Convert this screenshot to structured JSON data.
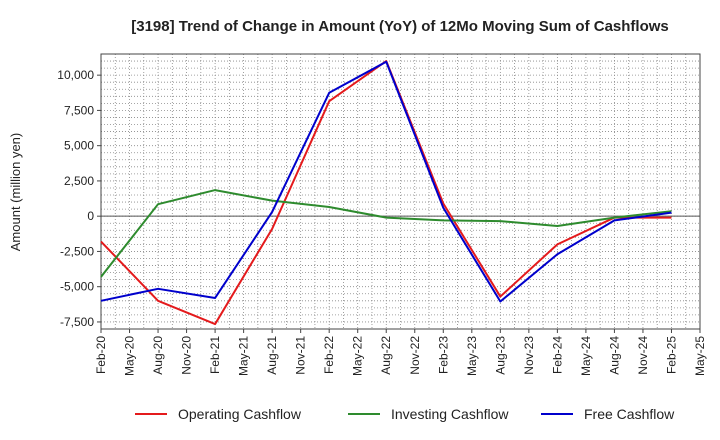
{
  "chart_data": {
    "type": "line",
    "title": "[3198]  Trend of Change in Amount (YoY) of 12Mo Moving Sum of Cashflows",
    "xlabel": "",
    "ylabel": "Amount (million yen)",
    "ylim": [
      -8000,
      11500
    ],
    "yticks": [
      -7500,
      -5000,
      -2500,
      0,
      2500,
      5000,
      7500,
      10000
    ],
    "ytick_labels": [
      "-7,500",
      "-5,000",
      "-2,500",
      "0",
      "2,500",
      "5,000",
      "7,500",
      "10,000"
    ],
    "x_tick_labels": [
      "Feb-20",
      "May-20",
      "Aug-20",
      "Nov-20",
      "Feb-21",
      "May-21",
      "Aug-21",
      "Nov-21",
      "Feb-22",
      "May-22",
      "Aug-22",
      "Nov-22",
      "Feb-23",
      "May-23",
      "Aug-23",
      "Nov-23",
      "Feb-24",
      "May-24",
      "Aug-24",
      "Nov-24",
      "Feb-25",
      "May-25"
    ],
    "x": [
      "Feb-20",
      "Aug-20",
      "Feb-21",
      "Aug-21",
      "Feb-22",
      "Aug-22",
      "Feb-23",
      "Aug-23",
      "Feb-24",
      "Aug-24",
      "Feb-25"
    ],
    "grid": true,
    "legend_position": "bottom",
    "series": [
      {
        "name": "Operating Cashflow",
        "color": "#e41a1c",
        "values": [
          -1800,
          -6000,
          -7650,
          -900,
          8150,
          11000,
          900,
          -5700,
          -2000,
          -100,
          -100
        ]
      },
      {
        "name": "Investing Cashflow",
        "color": "#2e8b2e",
        "values": [
          -4300,
          850,
          1850,
          1100,
          650,
          -100,
          -300,
          -350,
          -700,
          -100,
          350
        ]
      },
      {
        "name": "Free Cashflow",
        "color": "#0000cc",
        "values": [
          -6000,
          -5150,
          -5800,
          300,
          8750,
          10950,
          600,
          -6050,
          -2700,
          -300,
          250
        ]
      }
    ]
  }
}
